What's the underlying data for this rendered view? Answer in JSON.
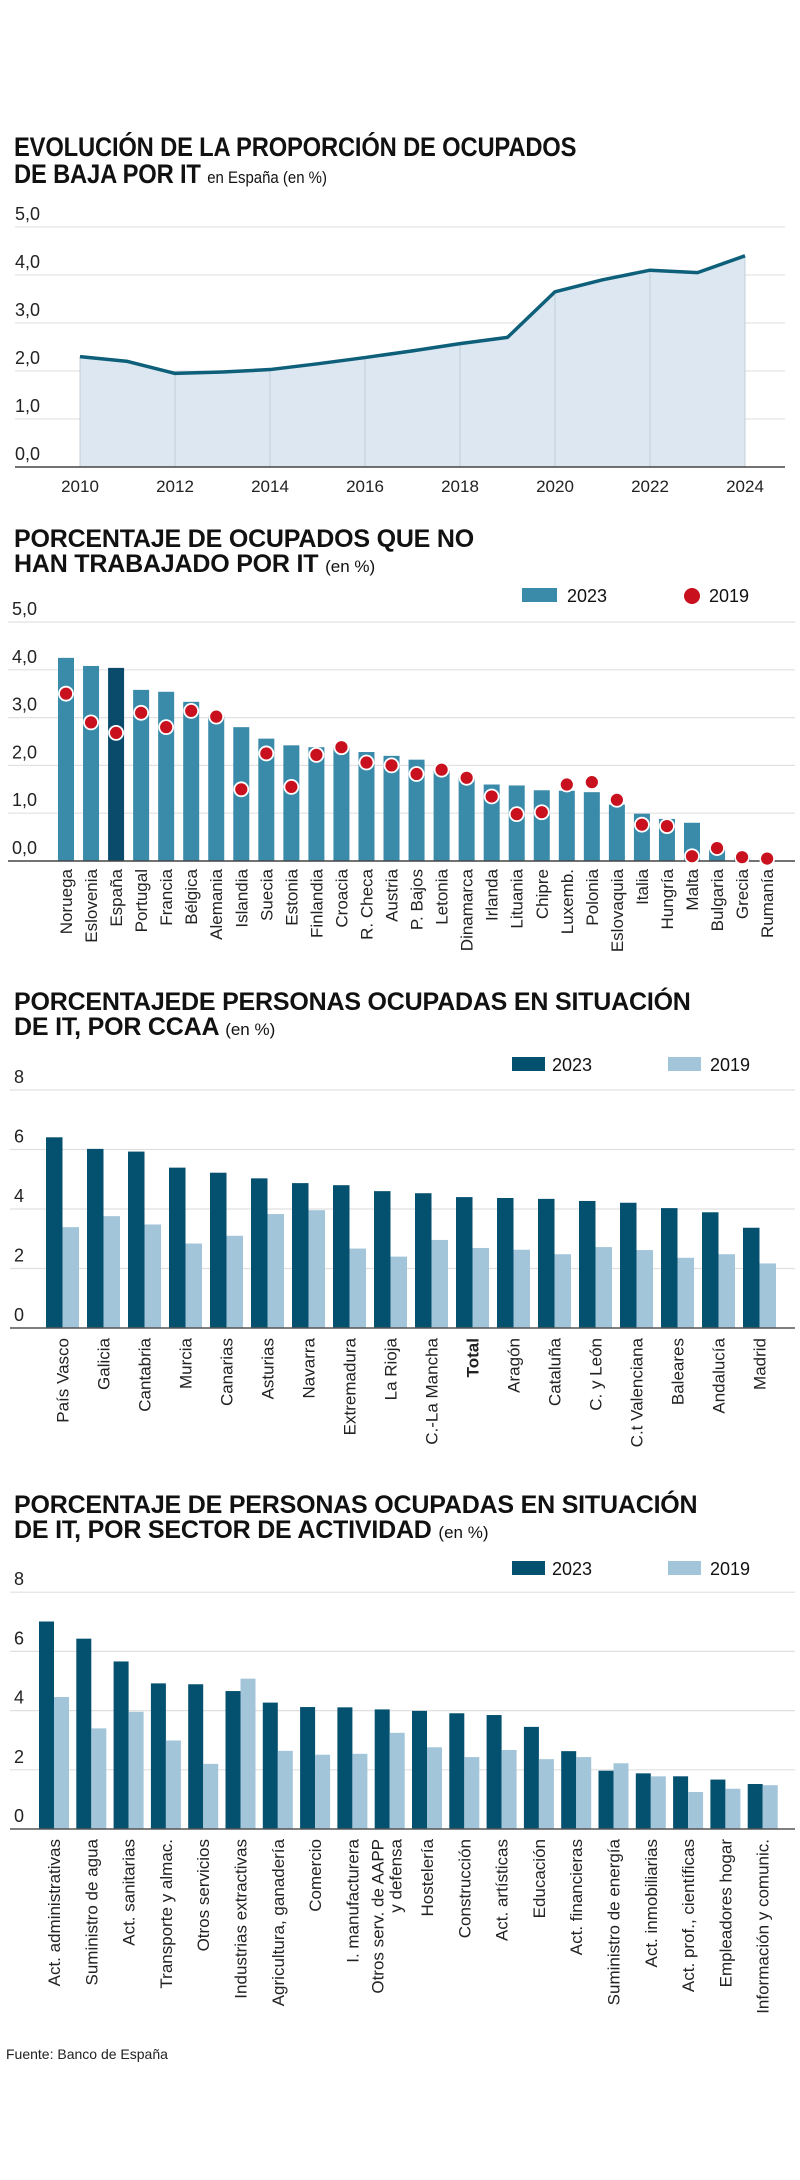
{
  "source": "Fuente: Banco de España",
  "chart_data": [
    {
      "type": "area",
      "title": "EVOLUCIÓN DE LA PROPORCIÓN DE OCUPADOS DE BAJA POR IT",
      "title_line1": "EVOLUCIÓN DE LA PROPORCIÓN DE OCUPADOS",
      "title_line2": "DE BAJA POR IT",
      "subtitle": "en España (en %)",
      "xlabel": "",
      "ylabel": "",
      "x": [
        2010,
        2011,
        2012,
        2013,
        2014,
        2015,
        2016,
        2017,
        2018,
        2019,
        2020,
        2021,
        2022,
        2023,
        2024
      ],
      "values": [
        2.3,
        2.2,
        1.95,
        1.98,
        2.03,
        2.15,
        2.28,
        2.42,
        2.57,
        2.7,
        3.65,
        3.9,
        4.1,
        4.05,
        4.4
      ],
      "xticks": [
        "2010",
        "2012",
        "2014",
        "2016",
        "2018",
        "2020",
        "2022",
        "2024"
      ],
      "yticks": [
        "0,0",
        "1,0",
        "2,0",
        "3,0",
        "4,0",
        "5,0"
      ],
      "ylim": [
        0,
        5
      ],
      "grid": true,
      "colors": {
        "line": "#0e5f7a",
        "fill": "#dce7f1"
      }
    },
    {
      "type": "bar",
      "title_line1": "PORCENTAJE DE OCUPADOS QUE NO",
      "title_line2": "HAN TRABAJADO POR IT",
      "subtitle": "(en %)",
      "xlabel": "",
      "ylabel": "",
      "categories": [
        "Noruega",
        "Eslovenia",
        "España",
        "Portugal",
        "Francia",
        "Bélgica",
        "Alemania",
        "Islandia",
        "Suecia",
        "Estonia",
        "Finlandia",
        "Croacia",
        "R. Checa",
        "Austria",
        "P. Bajos",
        "Letonia",
        "Dinamarca",
        "Irlanda",
        "Lituania",
        "Chipre",
        "Luxemb.",
        "Polonia",
        "Eslovaquia",
        "Italia",
        "Hungría",
        "Malta",
        "Bulgaria",
        "Grecia",
        "Rumanía"
      ],
      "highlight": "España",
      "series": [
        {
          "name": "2023",
          "kind": "bar",
          "color": "#3a8aaa",
          "values": [
            4.25,
            4.08,
            4.04,
            3.58,
            3.54,
            3.33,
            3.04,
            2.8,
            2.56,
            2.42,
            2.38,
            2.38,
            2.28,
            2.2,
            2.12,
            1.9,
            1.75,
            1.6,
            1.58,
            1.48,
            1.47,
            1.44,
            1.18,
            0.99,
            0.88,
            0.8,
            0.25,
            0.08,
            0.03
          ]
        },
        {
          "name": "2019",
          "kind": "dot",
          "color": "#c8101e",
          "values": [
            3.5,
            2.9,
            2.68,
            3.1,
            2.8,
            3.14,
            3.02,
            1.5,
            2.25,
            1.55,
            2.22,
            2.38,
            2.06,
            2.0,
            1.82,
            1.91,
            1.74,
            1.35,
            0.98,
            1.02,
            1.6,
            1.65,
            1.28,
            0.76,
            0.73,
            0.1,
            0.27,
            0.08,
            0.05
          ]
        }
      ],
      "highlight_color": "#0a4a6a",
      "yticks": [
        "0,0",
        "1,0",
        "2,0",
        "3,0",
        "4,0",
        "5,0"
      ],
      "ylim": [
        0,
        5
      ],
      "grid": true,
      "legend": [
        "2023",
        "2019"
      ],
      "legend_position": "top-right"
    },
    {
      "type": "bar",
      "title_line1": "PORCENTAJEDE PERSONAS OCUPADAS EN SITUACIÓN",
      "title_line2": "DE IT, POR CCAA",
      "subtitle": "(en %)",
      "xlabel": "",
      "ylabel": "",
      "categories": [
        "País Vasco",
        "Galicia",
        "Cantabria",
        "Murcia",
        "Canarias",
        "Asturias",
        "Navarra",
        "Extremadura",
        "La Rioja",
        "C.-La Mancha",
        "Total",
        "Aragón",
        "Cataluña",
        "C. y León",
        "C.t Valenciana",
        "Baleares",
        "Andalucía",
        "Madrid"
      ],
      "bold_category": "Total",
      "series": [
        {
          "name": "2023",
          "color": "#04506f",
          "values": [
            6.41,
            6.02,
            5.93,
            5.39,
            5.22,
            5.03,
            4.87,
            4.8,
            4.6,
            4.53,
            4.4,
            4.37,
            4.34,
            4.27,
            4.21,
            4.03,
            3.89,
            3.37
          ]
        },
        {
          "name": "2019",
          "color": "#a3c5d9",
          "values": [
            3.39,
            3.76,
            3.48,
            2.84,
            3.1,
            3.83,
            3.96,
            2.67,
            2.4,
            2.96,
            2.69,
            2.63,
            2.48,
            2.72,
            2.62,
            2.36,
            2.48,
            2.17
          ]
        }
      ],
      "yticks": [
        "0",
        "2",
        "4",
        "6",
        "8"
      ],
      "ylim": [
        0,
        8
      ],
      "grid": true,
      "legend": [
        "2023",
        "2019"
      ],
      "legend_position": "top-right"
    },
    {
      "type": "bar",
      "title_line1": "PORCENTAJE DE PERSONAS OCUPADAS EN SITUACIÓN",
      "title_line2": "DE IT, POR SECTOR DE ACTIVIDAD",
      "subtitle": "(en %)",
      "xlabel": "",
      "ylabel": "",
      "categories": [
        "Act. administrativas",
        "Suministro de agua",
        "Act. sanitarias",
        "Transporte y almac.",
        "Otros servicios",
        "Industrias extractivas",
        "Agricultura, ganadería",
        "Comercio",
        "I. manufacturera",
        "Otros serv. de AAPP|y defensa",
        "Hostelería",
        "Construcción",
        "Act. artísticas",
        "Educación",
        "Act. financieras",
        "Suministro de energía",
        "Act. inmobiliarias",
        "Act. prof., científicas",
        "Empleadores hogar",
        "Información y comunic."
      ],
      "series": [
        {
          "name": "2023",
          "color": "#04506f",
          "values": [
            7.01,
            6.43,
            5.66,
            4.92,
            4.89,
            4.66,
            4.27,
            4.12,
            4.11,
            4.04,
            3.99,
            3.91,
            3.85,
            3.45,
            2.63,
            1.97,
            1.88,
            1.78,
            1.67,
            1.52
          ]
        },
        {
          "name": "2019",
          "color": "#a3c5d9",
          "values": [
            4.46,
            3.4,
            3.96,
            2.99,
            2.2,
            5.08,
            2.64,
            2.51,
            2.54,
            3.25,
            2.76,
            2.43,
            2.67,
            2.36,
            2.43,
            2.22,
            1.78,
            1.25,
            1.36,
            1.48
          ]
        }
      ],
      "yticks": [
        "0",
        "2",
        "4",
        "6",
        "8"
      ],
      "ylim": [
        0,
        8
      ],
      "grid": true,
      "legend": [
        "2023",
        "2019"
      ],
      "legend_position": "top-right"
    }
  ]
}
